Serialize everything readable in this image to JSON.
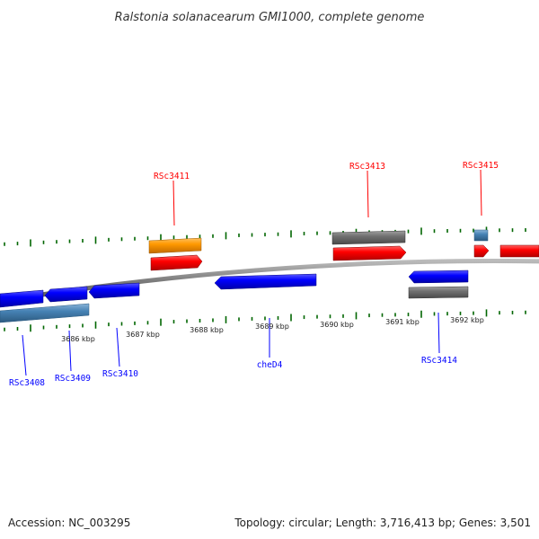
{
  "title": "Ralstonia solanacearum GMI1000, complete genome",
  "footer": {
    "accession": "Accession: NC_003295",
    "summary": "Topology: circular; Length: 3,716,413 bp; Genes: 3,501"
  },
  "colors": {
    "forward": "#ff0000",
    "reverse": "#0000ff",
    "pseudogene_grey": "#707070",
    "rna_orange": "#ff9900",
    "misc_blue": "#4682b4",
    "tick_green": "#006600",
    "backbone": "#888888"
  },
  "scale_labels": [
    "3686 kbp",
    "3687 kbp",
    "3688 kbp",
    "3689 kbp",
    "3690 kbp",
    "3691 kbp",
    "3692 kbp"
  ],
  "genes_forward": [
    {
      "label": "RSc3411"
    },
    {
      "label": "RSc3413"
    },
    {
      "label": "RSc3415"
    }
  ],
  "genes_reverse": [
    {
      "label": "RSc3408"
    },
    {
      "label": "RSc3409"
    },
    {
      "label": "RSc3410"
    },
    {
      "label": "cheD4"
    },
    {
      "label": "RSc3414"
    }
  ]
}
